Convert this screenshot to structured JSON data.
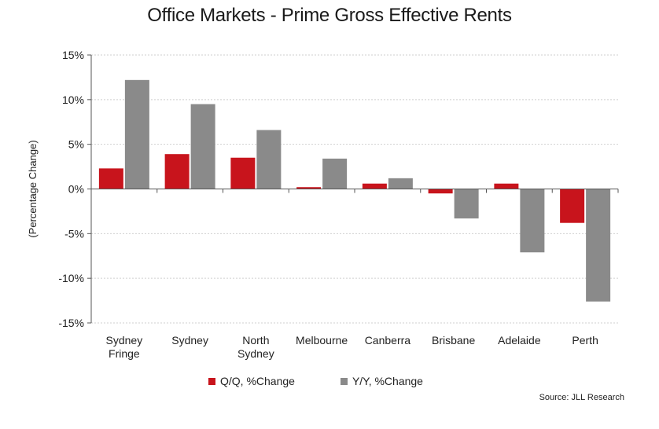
{
  "title": "Office Markets - Prime Gross Effective Rents",
  "source": "Source: JLL Research",
  "colors": {
    "qq": "#c8141c",
    "yy": "#8a8a8a",
    "grid": "#cfcfcf",
    "axis": "#555555"
  },
  "chart_data": {
    "type": "bar",
    "title": "Office Markets - Prime Gross Effective Rents",
    "xlabel": "",
    "ylabel": "(Percentage Change)",
    "ylim": [
      -15,
      15
    ],
    "yticks": [
      15,
      10,
      5,
      0,
      -5,
      -10,
      -15
    ],
    "ytick_labels": [
      "15%",
      "10%",
      "5%",
      "0%",
      "-5%",
      "-10%",
      "-15%"
    ],
    "grid": true,
    "legend_position": "bottom",
    "categories": [
      [
        "Sydney",
        "Fringe"
      ],
      [
        "Sydney"
      ],
      [
        "North",
        "Sydney"
      ],
      [
        "Melbourne"
      ],
      [
        "Canberra"
      ],
      [
        "Brisbane"
      ],
      [
        "Adelaide"
      ],
      [
        "Perth"
      ]
    ],
    "series": [
      {
        "name": "Q/Q, %Change",
        "color": "#c8141c",
        "values": [
          2.3,
          3.9,
          3.5,
          0.2,
          0.6,
          -0.5,
          0.6,
          -3.8
        ]
      },
      {
        "name": "Y/Y, %Change",
        "color": "#8a8a8a",
        "values": [
          12.2,
          9.5,
          6.6,
          3.4,
          1.2,
          -3.3,
          -7.1,
          -12.6
        ]
      }
    ]
  }
}
